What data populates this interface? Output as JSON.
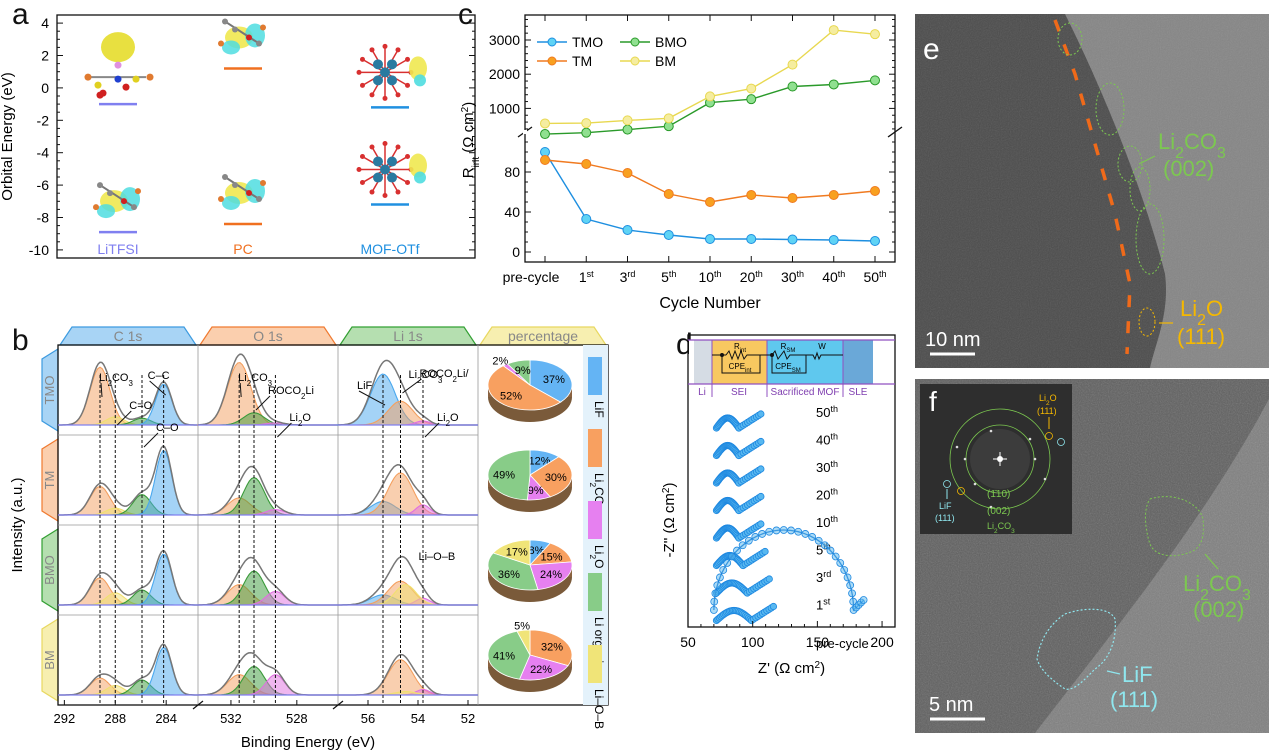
{
  "panels": {
    "a": {
      "label": "a"
    },
    "b": {
      "label": "b"
    },
    "c": {
      "label": "c"
    },
    "d": {
      "label": "d"
    },
    "e": {
      "label": "e"
    },
    "f": {
      "label": "f"
    }
  },
  "chart_data": [
    {
      "id": "a",
      "type": "scatter",
      "title": "",
      "ylabel": "Orbital Energy (eV)",
      "xlabel": "",
      "ylim": [
        -10.5,
        4.5
      ],
      "yticks": [
        4,
        2,
        0,
        -2,
        -4,
        -6,
        -8,
        -10
      ],
      "molecules": [
        {
          "name": "LiTFSI",
          "color": "#8080f0",
          "lumo": -1.0,
          "homo": -8.9
        },
        {
          "name": "PC",
          "color": "#f07020",
          "lumo": 1.2,
          "homo": -8.4
        },
        {
          "name": "MOF-OTf",
          "color": "#2090e0",
          "lumo": -1.2,
          "homo": -7.2
        }
      ]
    },
    {
      "id": "b",
      "type": "line",
      "xlabel": "Binding Energy (eV)",
      "ylabel": "Intensity (a.u.)",
      "regions": [
        {
          "name": "C 1s",
          "color": "#a8d4f5",
          "border": "#3d9be0",
          "xticks": [
            "292",
            "288",
            "284"
          ],
          "peaks": [
            {
              "label": "Li2CO3",
              "be": 289.2,
              "color": "#f4a060"
            },
            {
              "label": "C=O",
              "be": 288.0,
              "color": "#f0e070"
            },
            {
              "label": "C–O",
              "be": 285.9,
              "color": "#3a9a3a"
            },
            {
              "label": "C–C",
              "be": 284.2,
              "color": "#4aa8ee"
            }
          ]
        },
        {
          "name": "O 1s",
          "color": "#fbcfae",
          "border": "#f07a30",
          "xticks": [
            "532",
            "528"
          ],
          "peaks": [
            {
              "label": "Li2CO3",
              "be": 531.5,
              "color": "#f4a060"
            },
            {
              "label": "ROCO2Li",
              "be": 530.6,
              "color": "#3a9a3a"
            },
            {
              "label": "Li2O",
              "be": 529.3,
              "color": "#e070e0"
            }
          ]
        },
        {
          "name": "Li 1s",
          "color": "#b5dfb0",
          "border": "#33a033",
          "xticks": [
            "56",
            "54",
            "52"
          ],
          "peaks": [
            {
              "label": "LiF",
              "be": 55.4,
              "color": "#4aa8ee"
            },
            {
              "label": "ROCO2Li/ Li2CO3",
              "be": 54.7,
              "color": "#f4a060"
            },
            {
              "label": "Li2O",
              "be": 53.8,
              "color": "#e070e0"
            },
            {
              "label": "Li–O–B",
              "be": 54.5,
              "color": "#f0e070"
            }
          ]
        },
        {
          "name": "percentage",
          "color": "#f7efb0",
          "border": "#e8d860"
        }
      ],
      "samples": [
        {
          "name": "TMO",
          "color": "#a8d4f5",
          "border": "#3d9be0"
        },
        {
          "name": "TM",
          "color": "#fbcfae",
          "border": "#f07a30"
        },
        {
          "name": "BMO",
          "color": "#b5dfb0",
          "border": "#33a033"
        },
        {
          "name": "BM",
          "color": "#f7efb0",
          "border": "#e8d860"
        }
      ],
      "pies": [
        {
          "sample": "TMO",
          "slices": [
            {
              "name": "LiF",
              "value": 37,
              "label": "37%"
            },
            {
              "name": "Li2CO3",
              "value": 52,
              "label": "52%"
            },
            {
              "name": "Li2O",
              "value": 2,
              "label": "2%"
            },
            {
              "name": "Li organics",
              "value": 9,
              "label": "9%"
            }
          ]
        },
        {
          "sample": "TM",
          "slices": [
            {
              "name": "LiF",
              "value": 12,
              "label": "12%"
            },
            {
              "name": "Li2CO3",
              "value": 30,
              "label": "30%"
            },
            {
              "name": "Li2O",
              "value": 9,
              "label": "9%"
            },
            {
              "name": "Li organics",
              "value": 49,
              "label": "49%"
            }
          ]
        },
        {
          "sample": "BMO",
          "slices": [
            {
              "name": "LiF",
              "value": 8,
              "label": "8%"
            },
            {
              "name": "Li2CO3",
              "value": 15,
              "label": "15%"
            },
            {
              "name": "Li2O",
              "value": 24,
              "label": "24%"
            },
            {
              "name": "Li organics",
              "value": 36,
              "label": "36%"
            },
            {
              "name": "Li–O–B",
              "value": 17,
              "label": "17%"
            }
          ]
        },
        {
          "sample": "BM",
          "slices": [
            {
              "name": "Li2CO3",
              "value": 32,
              "label": "32%"
            },
            {
              "name": "Li2O",
              "value": 22,
              "label": "22%"
            },
            {
              "name": "Li organics",
              "value": 41,
              "label": "41%"
            },
            {
              "name": "Li–O–B",
              "value": 5,
              "label": "5%"
            }
          ]
        }
      ],
      "legend": [
        {
          "name": "LiF",
          "color": "#64b4f4"
        },
        {
          "name": "Li2CO3",
          "color": "#f8a060"
        },
        {
          "name": "Li2O",
          "color": "#e680f0"
        },
        {
          "name": "Li organics",
          "color": "#88cc88"
        },
        {
          "name": "Li–O–B",
          "color": "#f0e478"
        }
      ]
    },
    {
      "id": "c",
      "type": "line",
      "xlabel": "Cycle Number",
      "ylabel": "R_int (Ω cm²)",
      "categories": [
        "pre-cycle",
        "1st",
        "3rd",
        "5th",
        "10th",
        "20th",
        "30th",
        "40th",
        "50th"
      ],
      "y_upper": {
        "range": [
          150,
          3600
        ],
        "ticks": [
          1000,
          2000,
          3000
        ]
      },
      "y_lower": {
        "range": [
          -8,
          108
        ],
        "ticks": [
          0,
          40,
          80
        ]
      },
      "axis_break": true,
      "legend_position": "top-left",
      "series": [
        {
          "name": "TMO",
          "color": "#1e8fe0",
          "marker": "#5fd3f5",
          "axis": "lower",
          "values": [
            100,
            33,
            22,
            17,
            13,
            13,
            12.5,
            12,
            11
          ]
        },
        {
          "name": "TM",
          "color": "#f07a20",
          "marker": "#f8a020",
          "axis": "lower",
          "values": [
            92,
            88,
            79,
            58,
            50,
            57,
            54,
            57,
            61
          ]
        },
        {
          "name": "BMO",
          "color": "#2a9a2a",
          "marker": "#90e090",
          "axis": "upper",
          "values": [
            250,
            290,
            380,
            480,
            1170,
            1270,
            1640,
            1700,
            1820
          ]
        },
        {
          "name": "BM",
          "color": "#e8d850",
          "marker": "#f5eda0",
          "axis": "upper",
          "values": [
            560,
            570,
            650,
            710,
            1350,
            1580,
            2280,
            3290,
            3170
          ]
        }
      ]
    },
    {
      "id": "d",
      "type": "scatter",
      "xlabel": "Z' (Ω cm²)",
      "ylabel": "-Z'' (Ω cm²)",
      "xlim": [
        50,
        210
      ],
      "xticks": [
        50,
        100,
        150,
        200
      ],
      "curves": [
        "50th",
        "40th",
        "30th",
        "20th",
        "10th",
        "5th",
        "3rd",
        "1st",
        "pre-cycle"
      ],
      "circuit": {
        "zones": [
          "Li",
          "SEI",
          "Sacrificed MOF",
          "SLE"
        ],
        "elements": [
          "R_int",
          "CPE_int",
          "R_SM",
          "CPE_SM",
          "W"
        ]
      },
      "precycle_arc": {
        "z_start": 70,
        "z_end": 178,
        "z_tail": 186
      }
    }
  ],
  "images": {
    "e": {
      "scale_bar": "10 nm",
      "annotations": [
        {
          "text": "Li2CO3",
          "sub": "(002)",
          "color": "#7cc850"
        },
        {
          "text": "Li2O",
          "sub": "(111)",
          "color": "#f5b800"
        }
      ]
    },
    "f": {
      "scale_bar": "5 nm",
      "annotations": [
        {
          "text": "Li2CO3",
          "sub": "(002)",
          "color": "#7cc850"
        },
        {
          "text": "LiF",
          "sub": "(111)",
          "color": "#8fe6ee"
        }
      ],
      "inset": {
        "labels": [
          {
            "text": "Li2O",
            "sub": "(111)",
            "color": "#f5b800"
          },
          {
            "text": "LiF",
            "sub": "(111)",
            "color": "#8fe6ee"
          },
          {
            "text": "(1̄10)",
            "color": "#7cc850"
          },
          {
            "text": "(002)",
            "color": "#7cc850"
          },
          {
            "text": "Li2CO3",
            "color": "#7cc850"
          }
        ]
      }
    }
  }
}
